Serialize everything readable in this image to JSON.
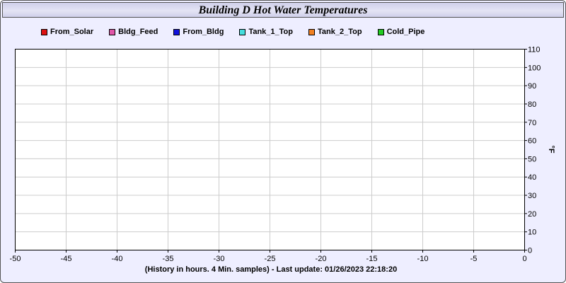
{
  "chart_data": {
    "type": "line",
    "title": "Building D Hot Water Temperatures",
    "ylabel": "°F",
    "xlabel": "(History in hours. 4 Min. samples) - Last update: 01/26/2023 22:18:20",
    "xlim": [
      -50,
      0
    ],
    "ylim": [
      0,
      110
    ],
    "x_ticks": [
      -50,
      -45,
      -40,
      -35,
      -30,
      -25,
      -20,
      -15,
      -10,
      -5,
      0
    ],
    "y_ticks": [
      0,
      10,
      20,
      30,
      40,
      50,
      60,
      70,
      80,
      90,
      100,
      110
    ],
    "grid": true,
    "legend_position": "top",
    "series": [
      {
        "name": "From_Solar",
        "color": "#dd1111",
        "values": []
      },
      {
        "name": "Bldg_Feed",
        "color": "#e055a8",
        "values": []
      },
      {
        "name": "From_Bldg",
        "color": "#1111dd",
        "values": []
      },
      {
        "name": "Tank_1_Top",
        "color": "#44dddd",
        "values": []
      },
      {
        "name": "Tank_2_Top",
        "color": "#f08022",
        "values": []
      },
      {
        "name": "Cold_Pipe",
        "color": "#22cc22",
        "values": []
      }
    ]
  }
}
